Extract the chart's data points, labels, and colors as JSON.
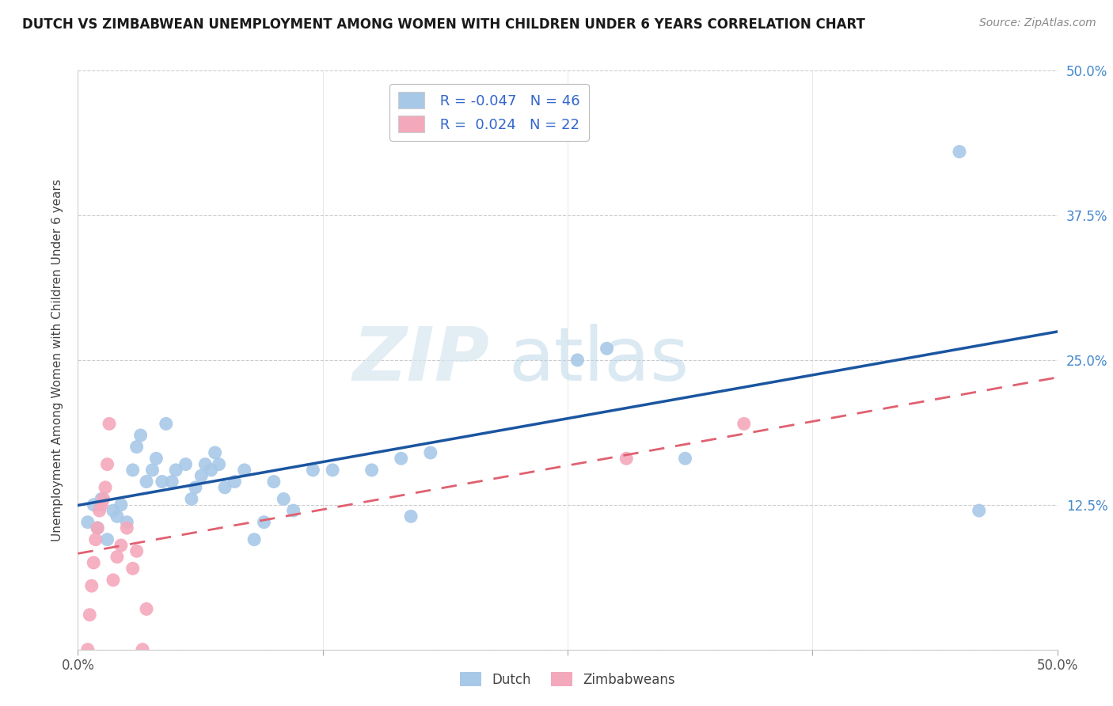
{
  "title": "DUTCH VS ZIMBABWEAN UNEMPLOYMENT AMONG WOMEN WITH CHILDREN UNDER 6 YEARS CORRELATION CHART",
  "source": "Source: ZipAtlas.com",
  "ylabel": "Unemployment Among Women with Children Under 6 years",
  "xlim": [
    0,
    0.5
  ],
  "ylim": [
    0,
    0.5
  ],
  "legend_dutch_R": "-0.047",
  "legend_dutch_N": "46",
  "legend_zimb_R": "0.024",
  "legend_zimb_N": "22",
  "dutch_color": "#a8c8e8",
  "zimb_color": "#f4a8bc",
  "dutch_line_color": "#1a55a0",
  "zimb_line_color": "#e06070",
  "background_color": "#ffffff",
  "watermark_zip": "ZIP",
  "watermark_atlas": "atlas",
  "dutch_x": [
    0.005,
    0.008,
    0.01,
    0.012,
    0.015,
    0.018,
    0.02,
    0.022,
    0.025,
    0.028,
    0.03,
    0.032,
    0.035,
    0.038,
    0.04,
    0.043,
    0.045,
    0.048,
    0.05,
    0.055,
    0.058,
    0.06,
    0.063,
    0.065,
    0.068,
    0.07,
    0.072,
    0.075,
    0.08,
    0.085,
    0.09,
    0.095,
    0.1,
    0.105,
    0.11,
    0.12,
    0.13,
    0.15,
    0.165,
    0.17,
    0.18,
    0.255,
    0.27,
    0.31,
    0.45,
    0.46
  ],
  "dutch_y": [
    0.11,
    0.125,
    0.105,
    0.13,
    0.095,
    0.12,
    0.115,
    0.125,
    0.11,
    0.155,
    0.175,
    0.185,
    0.145,
    0.155,
    0.165,
    0.145,
    0.195,
    0.145,
    0.155,
    0.16,
    0.13,
    0.14,
    0.15,
    0.16,
    0.155,
    0.17,
    0.16,
    0.14,
    0.145,
    0.155,
    0.095,
    0.11,
    0.145,
    0.13,
    0.12,
    0.155,
    0.155,
    0.155,
    0.165,
    0.115,
    0.17,
    0.25,
    0.26,
    0.165,
    0.43,
    0.12
  ],
  "zimb_x": [
    0.005,
    0.006,
    0.007,
    0.008,
    0.009,
    0.01,
    0.011,
    0.012,
    0.013,
    0.014,
    0.015,
    0.016,
    0.018,
    0.02,
    0.022,
    0.025,
    0.028,
    0.03,
    0.033,
    0.035,
    0.28,
    0.34
  ],
  "zimb_y": [
    0.0,
    0.03,
    0.055,
    0.075,
    0.095,
    0.105,
    0.12,
    0.125,
    0.13,
    0.14,
    0.16,
    0.195,
    0.06,
    0.08,
    0.09,
    0.105,
    0.07,
    0.085,
    0.0,
    0.035,
    0.165,
    0.195
  ]
}
